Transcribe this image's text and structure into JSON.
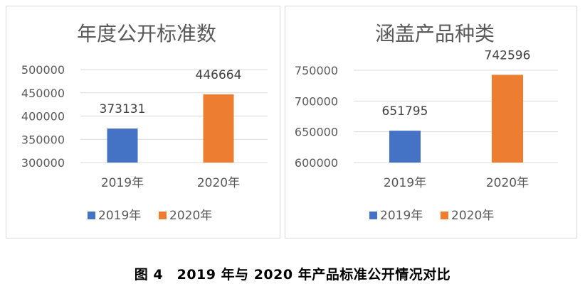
{
  "caption": "图 4　2019 年与 2020 年产品标准公开情况对比",
  "chart_data": [
    {
      "type": "bar",
      "title": "年度公开标准数",
      "categories": [
        "2019年",
        "2020年"
      ],
      "values": [
        373131,
        446664
      ],
      "ylim": [
        300000,
        500000
      ],
      "yticks": [
        300000,
        350000,
        400000,
        450000,
        500000
      ],
      "colors": [
        "#4472c4",
        "#ed7d31"
      ],
      "grid": true,
      "legend": "bottom",
      "legend_entries": [
        "2019年",
        "2020年"
      ]
    },
    {
      "type": "bar",
      "title": "涵盖产品种类",
      "categories": [
        "2019年",
        "2020年"
      ],
      "values": [
        651795,
        742596
      ],
      "ylim": [
        600000,
        750000
      ],
      "yticks": [
        600000,
        650000,
        700000,
        750000
      ],
      "colors": [
        "#4472c4",
        "#ed7d31"
      ],
      "grid": true,
      "legend": "bottom",
      "legend_entries": [
        "2019年",
        "2020年"
      ]
    }
  ]
}
